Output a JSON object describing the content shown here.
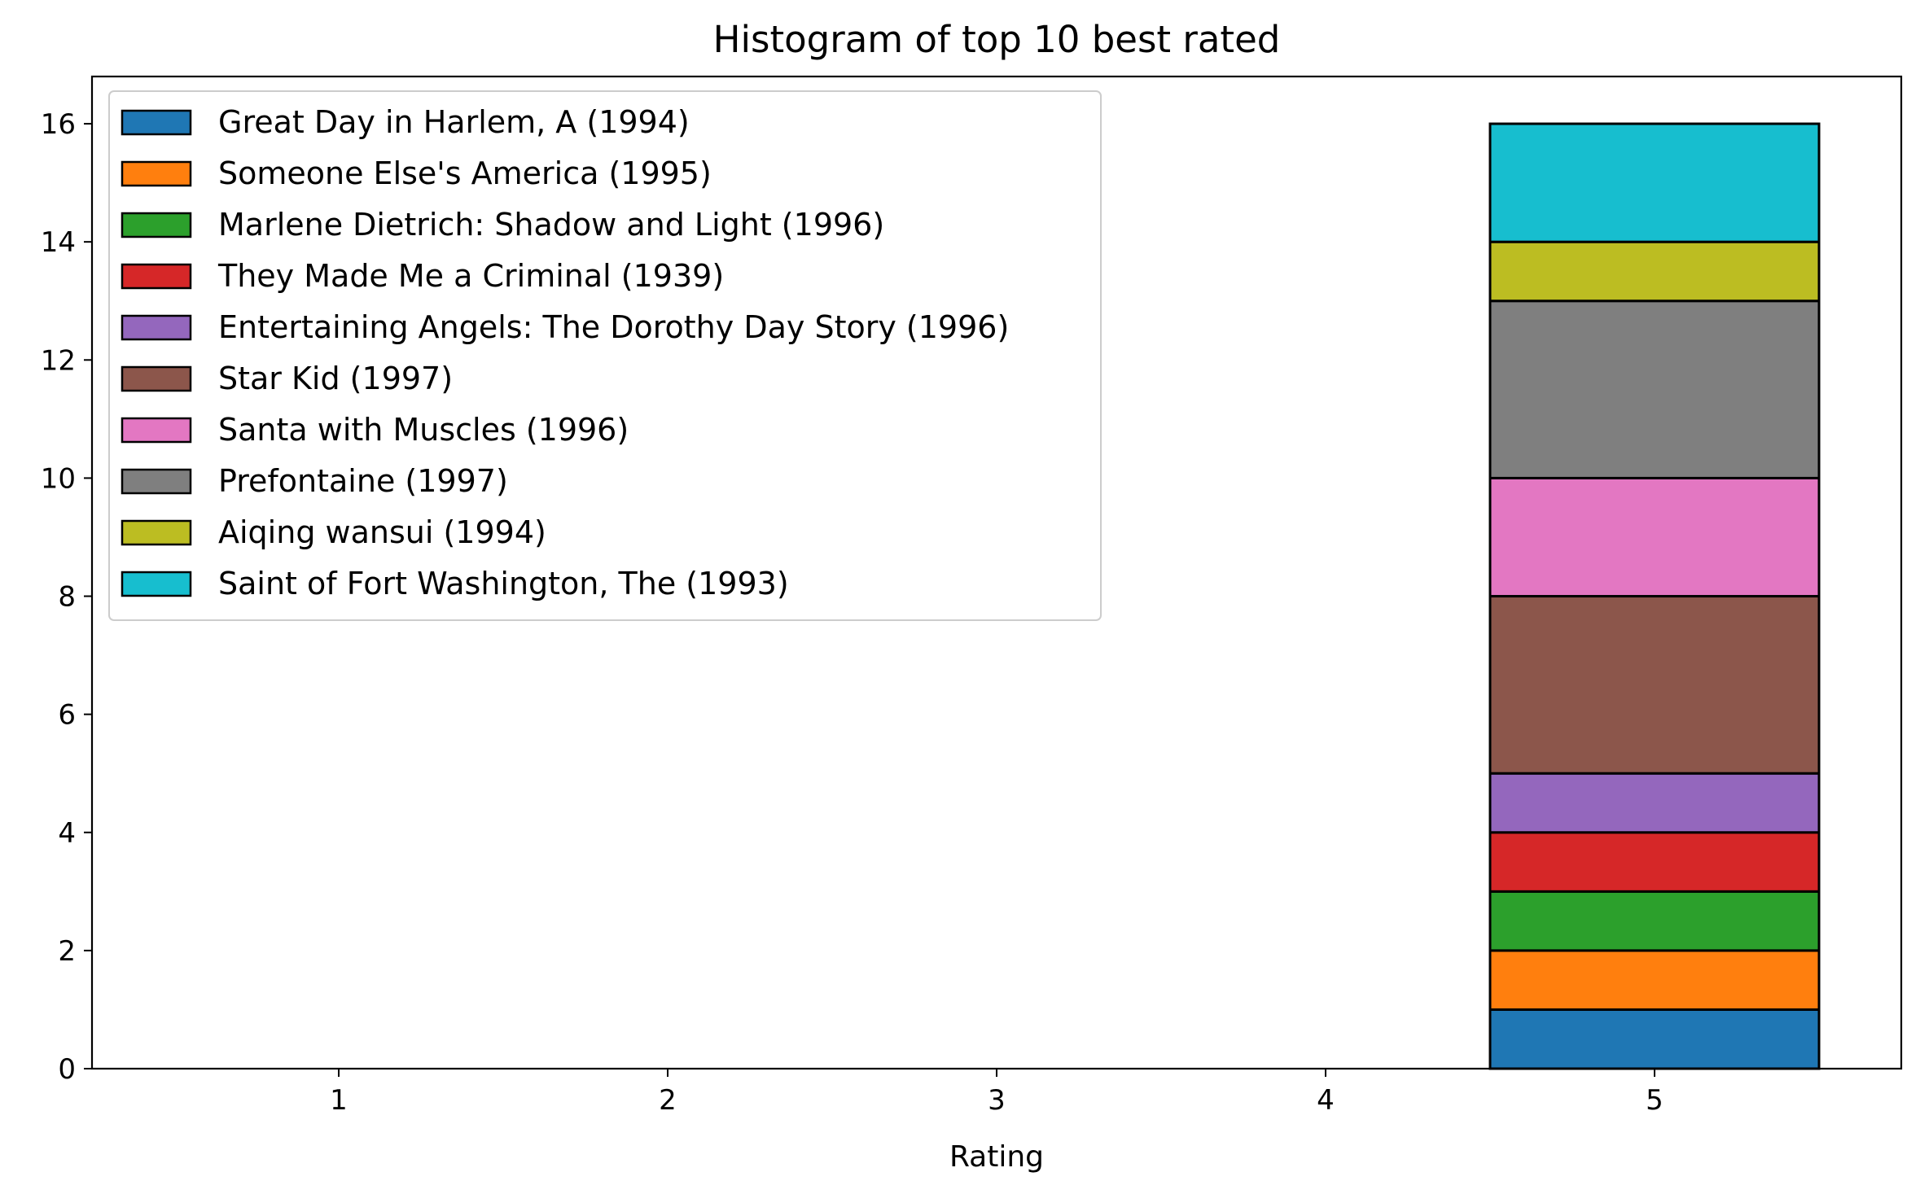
{
  "chart_data": {
    "type": "bar",
    "stacked": true,
    "title": "Histogram of top 10 best rated",
    "xlabel": "Rating",
    "ylabel": "",
    "categories": [
      1,
      2,
      3,
      4,
      5
    ],
    "xlim": [
      0.25,
      5.75
    ],
    "ylim": [
      0,
      16.8
    ],
    "yticks": [
      0,
      2,
      4,
      6,
      8,
      10,
      12,
      14,
      16
    ],
    "grid": false,
    "legend_position": "upper-left",
    "series": [
      {
        "name": "Great Day in Harlem, A (1994)",
        "color": "#1f77b4",
        "values": [
          0,
          0,
          0,
          0,
          1
        ]
      },
      {
        "name": "Someone Else's America (1995)",
        "color": "#ff7f0e",
        "values": [
          0,
          0,
          0,
          0,
          1
        ]
      },
      {
        "name": "Marlene Dietrich: Shadow and Light (1996)",
        "color": "#2ca02c",
        "values": [
          0,
          0,
          0,
          0,
          1
        ]
      },
      {
        "name": "They Made Me a Criminal (1939)",
        "color": "#d62728",
        "values": [
          0,
          0,
          0,
          0,
          1
        ]
      },
      {
        "name": "Entertaining Angels: The Dorothy Day Story (1996)",
        "color": "#9467bd",
        "values": [
          0,
          0,
          0,
          0,
          1
        ]
      },
      {
        "name": "Star Kid (1997)",
        "color": "#8c564b",
        "values": [
          0,
          0,
          0,
          0,
          3
        ]
      },
      {
        "name": "Santa with Muscles (1996)",
        "color": "#e377c2",
        "values": [
          0,
          0,
          0,
          0,
          2
        ]
      },
      {
        "name": "Prefontaine (1997)",
        "color": "#7f7f7f",
        "values": [
          0,
          0,
          0,
          0,
          3
        ]
      },
      {
        "name": "Aiqing wansui (1994)",
        "color": "#bcbd22",
        "values": [
          0,
          0,
          0,
          0,
          1
        ]
      },
      {
        "name": "Saint of Fort Washington, The (1993)",
        "color": "#17becf",
        "values": [
          0,
          0,
          0,
          0,
          2
        ]
      }
    ]
  }
}
